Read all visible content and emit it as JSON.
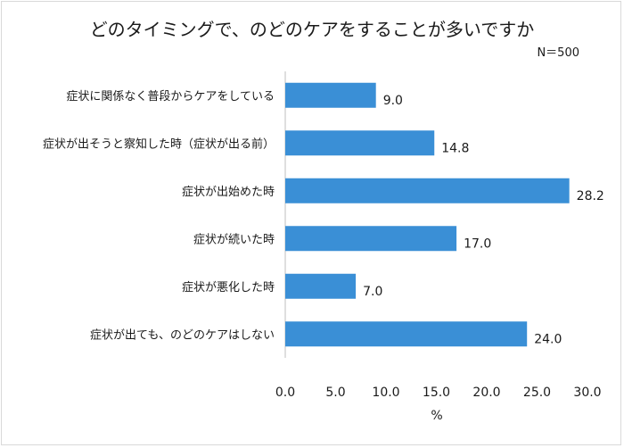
{
  "chart_data": {
    "type": "bar",
    "orientation": "horizontal",
    "title": "どのタイミングで、のどのケアをすることが多いですか",
    "note": "N＝500",
    "categories": [
      "症状に関係なく普段からケアをしている",
      "症状が出そうと察知した時（症状が出る前）",
      "症状が出始めた時",
      "症状が続いた時",
      "症状が悪化した時",
      "症状が出ても、のどのケアはしない"
    ],
    "values": [
      9.0,
      14.8,
      28.2,
      17.0,
      7.0,
      24.0
    ],
    "xlabel": "%",
    "xlim": [
      0,
      30
    ],
    "xticks": [
      0,
      5,
      10,
      15,
      20,
      25,
      30
    ],
    "xtick_labels": [
      "0.0",
      "5.0",
      "10.0",
      "15.0",
      "20.0",
      "25.0",
      "30.0"
    ],
    "value_labels": [
      "9.0",
      "14.8",
      "28.2",
      "17.0",
      "7.0",
      "24.0"
    ],
    "bar_color": "#3a8fd6",
    "grid": false,
    "legend": "none"
  }
}
